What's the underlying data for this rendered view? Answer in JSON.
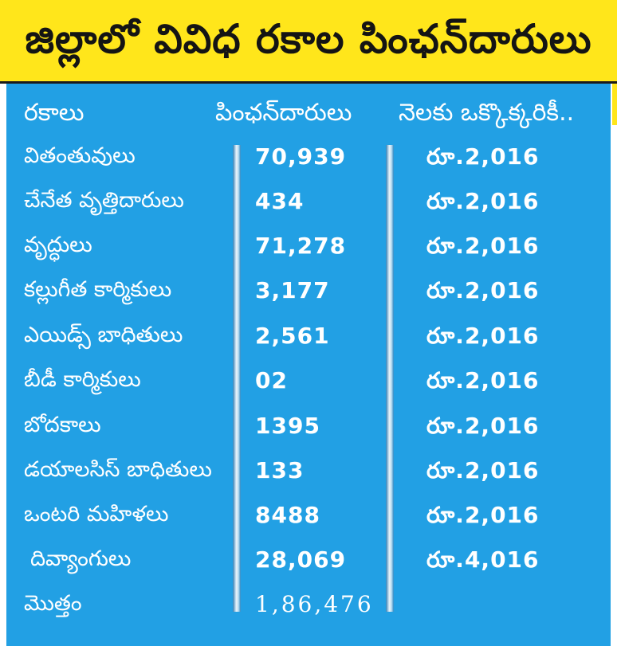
{
  "title": "జిల్లాలో వివిధ రకాల పింఛన్‌దారులు",
  "headers": {
    "type": "రకాలు",
    "pensioners": "పింఛన్‌దారులు",
    "monthly": "నెలకు ఒక్కొక్కరికీ.."
  },
  "rows": [
    {
      "type": "వితంతువులు",
      "count": "70,939",
      "amount": "రూ.2,016"
    },
    {
      "type": "చేనేత వృత్తిదారులు",
      "count": "434",
      "amount": "రూ.2,016"
    },
    {
      "type": "వృద్ధులు",
      "count": "71,278",
      "amount": "రూ.2,016"
    },
    {
      "type": "కల్లుగీత కార్మికులు",
      "count": "3,177",
      "amount": "రూ.2,016"
    },
    {
      "type": "ఎయిడ్స్ బాధితులు",
      "count": "2,561",
      "amount": "రూ.2,016"
    },
    {
      "type": "బీడీ కార్మికులు",
      "count": "02",
      "amount": "రూ.2,016"
    },
    {
      "type": "బోదకాలు",
      "count": "1395",
      "amount": "రూ.2,016"
    },
    {
      "type": "డయాలసిస్ బాధితులు",
      "count": "133",
      "amount": "రూ.2,016"
    },
    {
      "type": "ఒంటరి మహిళలు",
      "count": "8488",
      "amount": "రూ.2,016"
    },
    {
      "type": "దివ్యాంగులు",
      "count": "28,069",
      "amount": "రూ.4,016"
    }
  ],
  "total": {
    "label": "మొత్తం",
    "count": "1,86,476"
  },
  "colors": {
    "title_bg": "#ffe61b",
    "panel_bg": "#22a0e4",
    "text": "#ffffff"
  }
}
